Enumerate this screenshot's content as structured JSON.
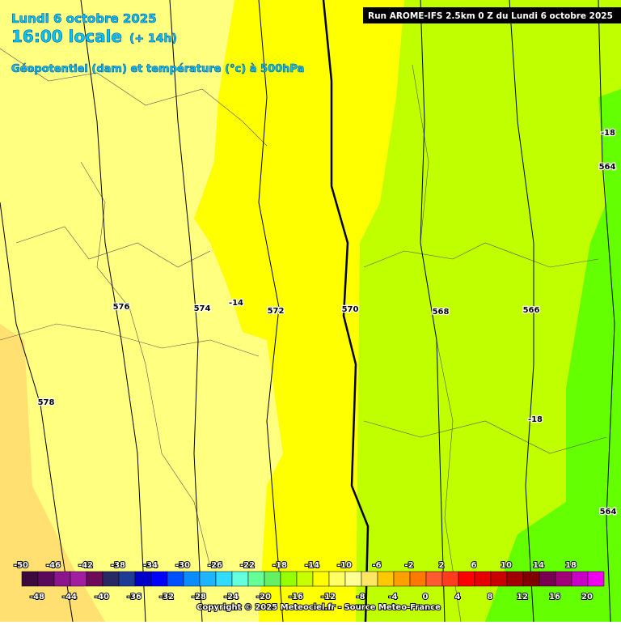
{
  "header": {
    "date": "Lundi 6 octobre 2025",
    "time": "16:00 locale",
    "offset": "(+ 14h)",
    "subtitle": "Géopotentiel (dam) et température (°c) à 500hPa"
  },
  "run": "Run AROME-IFS 2.5km 0 Z du Lundi 6 octobre 2025",
  "contour_labels": [
    "576",
    "574",
    "572",
    "570",
    "568",
    "566",
    "578",
    "564",
    "564",
    "-14",
    "-18",
    "-18"
  ],
  "legend": {
    "values": [
      -50,
      -48,
      -46,
      -44,
      -42,
      -40,
      -38,
      -36,
      -34,
      -32,
      -30,
      -28,
      -26,
      -24,
      -22,
      -20,
      -18,
      -16,
      -14,
      -12,
      -10,
      -8,
      -6,
      -4,
      -2,
      0,
      2,
      4,
      6,
      8,
      10,
      12,
      14,
      16,
      18,
      20
    ],
    "colors": [
      "#3c0a3c",
      "#5a0a5a",
      "#8c148c",
      "#a01ea0",
      "#6e0a5a",
      "#282864",
      "#1e3c96",
      "#0000c8",
      "#0000ff",
      "#0050ff",
      "#0a8cff",
      "#1eb4ff",
      "#32dcff",
      "#64ffdc",
      "#64ff96",
      "#64f064",
      "#96ff00",
      "#c8ff00",
      "#ffff00",
      "#ffff64",
      "#ffff96",
      "#ffe664",
      "#ffc800",
      "#ffa000",
      "#ff7800",
      "#ff5a32",
      "#ff3c1e",
      "#ff0000",
      "#e60000",
      "#c80000",
      "#a00000",
      "#800000",
      "#780050",
      "#a00078",
      "#c800c8",
      "#f000f0"
    ]
  },
  "copyright": "Copyright © 2025 Meteociel.fr - Source Meteo-France"
}
